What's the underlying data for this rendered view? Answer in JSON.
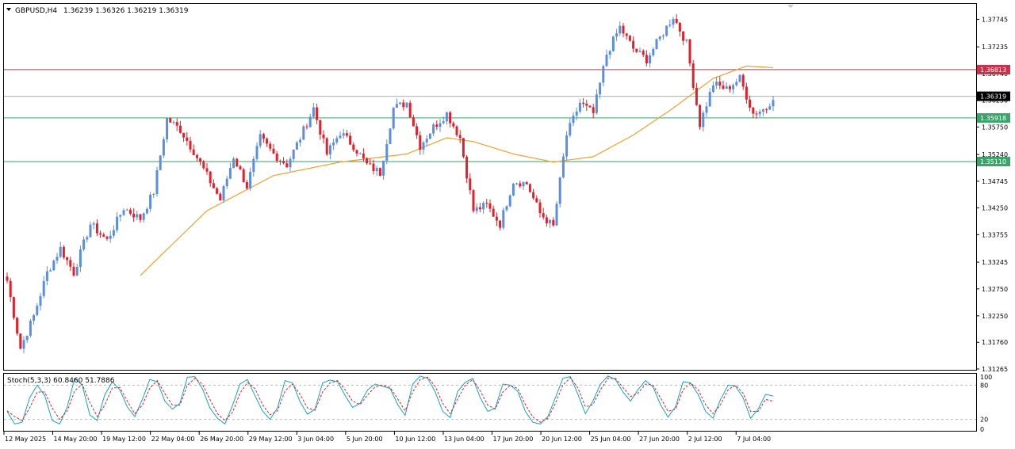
{
  "header": {
    "symbol": "GBPUSD,H4",
    "ohlc": "1.36239 1.36326 1.36219 1.36319"
  },
  "stoch_label": "Stoch(5,3,3) 60.8460 51.7886",
  "colors": {
    "bull": "#5b8fdc",
    "bear": "#e0202a",
    "ma": "#f0a030",
    "resistance_line": "#c8324a",
    "support_line": "#3aa46a",
    "current_price_line": "#b0b0b0",
    "stoch_main": "#17a5b8",
    "stoch_signal": "#e0202a"
  },
  "chart_data": [
    {
      "type": "candlestick",
      "title": "GBPUSD,H4",
      "ylim": [
        1.3125,
        1.3803
      ],
      "price_ticks": [
        "1.37745",
        "1.37235",
        "1.36740",
        "1.36250",
        "1.35750",
        "1.35240",
        "1.34745",
        "1.34250",
        "1.33755",
        "1.33245",
        "1.32750",
        "1.32250",
        "1.31760",
        "1.31265"
      ],
      "time_labels": [
        "12 May 2025",
        "14 May 20:00",
        "19 May 12:00",
        "22 May 04:00",
        "26 May 20:00",
        "29 May 12:00",
        "3 Jun 04:00",
        "5 Jun 20:00",
        "10 Jun 12:00",
        "13 Jun 04:00",
        "17 Jun 20:00",
        "20 Jun 12:00",
        "25 Jun 04:00",
        "27 Jun 20:00",
        "2 Jul 12:00",
        "7 Jul 04:00"
      ],
      "levels": [
        {
          "label": "1.36813",
          "value": 1.36813,
          "kind": "resistance"
        },
        {
          "label": "1.35918",
          "value": 1.35918,
          "kind": "support"
        },
        {
          "label": "1.35110",
          "value": 1.3511,
          "kind": "support"
        }
      ],
      "current_price": {
        "label": "1.36319",
        "value": 1.36319
      },
      "close_path": [
        [
          0,
          1.329
        ],
        [
          4,
          1.3165
        ],
        [
          8,
          1.3225
        ],
        [
          12,
          1.3305
        ],
        [
          16,
          1.335
        ],
        [
          20,
          1.3305
        ],
        [
          25,
          1.3395
        ],
        [
          30,
          1.3365
        ],
        [
          35,
          1.3425
        ],
        [
          40,
          1.3405
        ],
        [
          44,
          1.3455
        ],
        [
          48,
          1.359
        ],
        [
          52,
          1.357
        ],
        [
          56,
          1.353
        ],
        [
          60,
          1.3485
        ],
        [
          64,
          1.344
        ],
        [
          68,
          1.352
        ],
        [
          72,
          1.3465
        ],
        [
          76,
          1.3555
        ],
        [
          80,
          1.3525
        ],
        [
          84,
          1.3505
        ],
        [
          88,
          1.3555
        ],
        [
          92,
          1.361
        ],
        [
          96,
          1.3525
        ],
        [
          100,
          1.3565
        ],
        [
          104,
          1.354
        ],
        [
          108,
          1.3505
        ],
        [
          112,
          1.349
        ],
        [
          116,
          1.361
        ],
        [
          120,
          1.362
        ],
        [
          124,
          1.354
        ],
        [
          128,
          1.3575
        ],
        [
          132,
          1.36
        ],
        [
          136,
          1.3555
        ],
        [
          140,
          1.342
        ],
        [
          144,
          1.343
        ],
        [
          148,
          1.3395
        ],
        [
          152,
          1.3475
        ],
        [
          156,
          1.347
        ],
        [
          160,
          1.3415
        ],
        [
          164,
          1.339
        ],
        [
          168,
          1.356
        ],
        [
          172,
          1.362
        ],
        [
          176,
          1.36
        ],
        [
          180,
          1.371
        ],
        [
          184,
          1.376
        ],
        [
          188,
          1.372
        ],
        [
          192,
          1.37
        ],
        [
          196,
          1.374
        ],
        [
          200,
          1.378
        ],
        [
          204,
          1.373
        ],
        [
          208,
          1.358
        ],
        [
          212,
          1.3655
        ],
        [
          216,
          1.3645
        ],
        [
          220,
          1.3665
        ],
        [
          224,
          1.36
        ],
        [
          228,
          1.361
        ],
        [
          230,
          1.3632
        ]
      ],
      "moving_average": [
        [
          40,
          1.33
        ],
        [
          60,
          1.342
        ],
        [
          80,
          1.3485
        ],
        [
          100,
          1.351
        ],
        [
          120,
          1.3525
        ],
        [
          132,
          1.3555
        ],
        [
          140,
          1.3548
        ],
        [
          152,
          1.3525
        ],
        [
          164,
          1.351
        ],
        [
          176,
          1.352
        ],
        [
          188,
          1.356
        ],
        [
          200,
          1.361
        ],
        [
          212,
          1.3665
        ],
        [
          222,
          1.3688
        ],
        [
          230,
          1.3685
        ]
      ]
    },
    {
      "type": "line",
      "title": "Stoch(5,3,3) 60.8460 51.7886",
      "ylim": [
        0,
        100
      ],
      "y_ticks": [
        "100",
        "80",
        "20",
        "0"
      ],
      "levels": [
        80,
        20
      ],
      "series": [
        {
          "role": "main",
          "values": [
            34,
            12,
            15,
            58,
            80,
            62,
            18,
            12,
            42,
            92,
            80,
            28,
            18,
            63,
            86,
            72,
            42,
            25,
            55,
            90,
            86,
            52,
            38,
            48,
            94,
            95,
            74,
            40,
            22,
            12,
            44,
            82,
            90,
            62,
            35,
            20,
            40,
            88,
            84,
            51,
            29,
            38,
            84,
            89,
            86,
            62,
            41,
            48,
            72,
            82,
            78,
            74,
            46,
            27,
            82,
            96,
            92,
            68,
            34,
            23,
            69,
            85,
            92,
            58,
            34,
            40,
            82,
            80,
            69,
            34,
            15,
            12,
            25,
            58,
            92,
            95,
            64,
            30,
            52,
            82,
            96,
            90,
            68,
            52,
            72,
            88,
            77,
            46,
            24,
            42,
            86,
            84,
            64,
            34,
            22,
            55,
            80,
            78,
            58,
            22,
            38,
            64,
            61
          ]
        },
        {
          "role": "signal",
          "values": [
            35,
            25,
            18,
            40,
            68,
            68,
            40,
            20,
            35,
            70,
            82,
            50,
            25,
            45,
            75,
            76,
            52,
            30,
            45,
            75,
            88,
            65,
            45,
            45,
            80,
            92,
            82,
            55,
            30,
            18,
            32,
            66,
            85,
            74,
            46,
            28,
            35,
            70,
            82,
            64,
            40,
            36,
            68,
            84,
            88,
            72,
            52,
            46,
            63,
            77,
            80,
            76,
            56,
            35,
            68,
            90,
            94,
            78,
            48,
            30,
            56,
            80,
            90,
            70,
            45,
            38,
            68,
            80,
            74,
            46,
            24,
            15,
            22,
            48,
            80,
            93,
            75,
            42,
            46,
            72,
            92,
            92,
            76,
            60,
            66,
            82,
            80,
            58,
            34,
            38,
            72,
            84,
            72,
            46,
            30,
            46,
            72,
            80,
            66,
            34,
            34,
            55,
            52
          ]
        }
      ]
    }
  ]
}
